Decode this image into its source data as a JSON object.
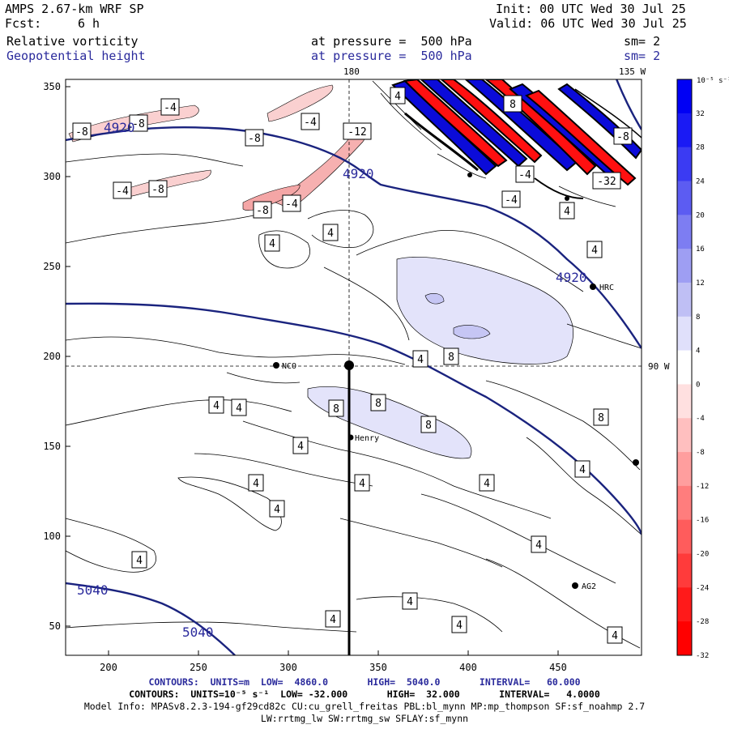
{
  "header": {
    "model": "AMPS 2.67-km WRF SP",
    "fcst_label": "Fcst:",
    "fcst_value": "6 h",
    "init": "Init: 00 UTC Wed 30 Jul 25",
    "valid": "Valid: 06 UTC Wed 30 Jul 25",
    "field1": "Relative vorticity",
    "field2": "Geopotential height",
    "pressure1": "at pressure =  500 hPa",
    "pressure2": "at pressure =  500 hPa",
    "sm1": "sm= 2",
    "sm2": "sm= 2"
  },
  "map": {
    "top_label_180": "180",
    "top_label_135": "135 W",
    "right_label_90": "90 W",
    "stations": [
      "NCO",
      "Henry",
      "HRC",
      "AG2"
    ],
    "height_labels": [
      "4920",
      "4920",
      "4920",
      "5040",
      "5040"
    ],
    "x_ticks": [
      "200",
      "250",
      "300",
      "350",
      "400",
      "450"
    ],
    "y_ticks": [
      "350",
      "300",
      "250",
      "200",
      "150",
      "100",
      "50"
    ]
  },
  "colorbar": {
    "unit": "10⁻⁵ s⁻¹",
    "labels": [
      "32",
      "28",
      "24",
      "20",
      "16",
      "12",
      "8",
      "4",
      "0",
      "-4",
      "-8",
      "-12",
      "-16",
      "-20",
      "-24",
      "-28",
      "-32"
    ],
    "colors": [
      "#0000f5",
      "#1a1af5",
      "#3b3bf3",
      "#5c5cf2",
      "#7d7df2",
      "#9e9ef3",
      "#bfbff5",
      "#e0e0fb",
      "#ffffff",
      "#ffe0e0",
      "#ffbfbf",
      "#ff9e9e",
      "#ff7d7d",
      "#ff5c5c",
      "#ff3b3b",
      "#ff1a1a",
      "#ff0000"
    ]
  },
  "footer": {
    "line1": "CONTOURS:  UNITS=m  LOW=  4860.0       HIGH=  5040.0       INTERVAL=   60.000",
    "line2": "CONTOURS:  UNITS=10⁻⁵ s⁻¹  LOW= -32.000       HIGH=  32.000       INTERVAL=   4.0000",
    "line3": "Model Info: MPASv8.2.3-194-gf29cd82c CU:cu_grell_freitas PBL:bl_mynn MP:mp_thompson SF:sf_noahmp 2.7",
    "line4": "LW:rrtmg_lw SW:rrtmg_sw SFLAY:sf_mynn"
  }
}
